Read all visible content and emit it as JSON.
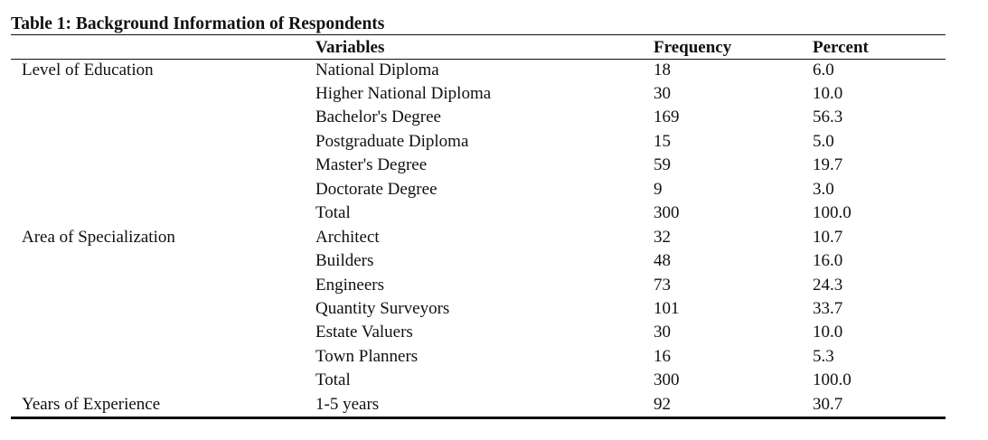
{
  "table": {
    "title": "Table 1: Background Information of Respondents",
    "headers": {
      "variables": "Variables",
      "frequency": "Frequency",
      "percent": "Percent"
    },
    "rows": [
      {
        "group": "Level of Education",
        "variable": "National Diploma",
        "frequency": "18",
        "percent": "6.0"
      },
      {
        "group": "",
        "variable": "Higher National Diploma",
        "frequency": "30",
        "percent": "10.0"
      },
      {
        "group": "",
        "variable": "Bachelor's Degree",
        "frequency": "169",
        "percent": "56.3"
      },
      {
        "group": "",
        "variable": "Postgraduate Diploma",
        "frequency": "15",
        "percent": "5.0"
      },
      {
        "group": "",
        "variable": "Master's Degree",
        "frequency": "59",
        "percent": "19.7"
      },
      {
        "group": "",
        "variable": "Doctorate Degree",
        "frequency": "9",
        "percent": "3.0"
      },
      {
        "group": "",
        "variable": "Total",
        "frequency": "300",
        "percent": "100.0"
      },
      {
        "group": "Area of Specialization",
        "variable": "Architect",
        "frequency": "32",
        "percent": "10.7"
      },
      {
        "group": "",
        "variable": "Builders",
        "frequency": "48",
        "percent": "16.0"
      },
      {
        "group": "",
        "variable": "Engineers",
        "frequency": "73",
        "percent": "24.3"
      },
      {
        "group": "",
        "variable": "Quantity Surveyors",
        "frequency": "101",
        "percent": "33.7"
      },
      {
        "group": "",
        "variable": "Estate Valuers",
        "frequency": "30",
        "percent": "10.0"
      },
      {
        "group": "",
        "variable": "Town Planners",
        "frequency": "16",
        "percent": "5.3"
      },
      {
        "group": "",
        "variable": "Total",
        "frequency": "300",
        "percent": "100.0"
      },
      {
        "group": "Years of Experience",
        "variable": "1-5 years",
        "frequency": "92",
        "percent": "30.7"
      }
    ]
  }
}
